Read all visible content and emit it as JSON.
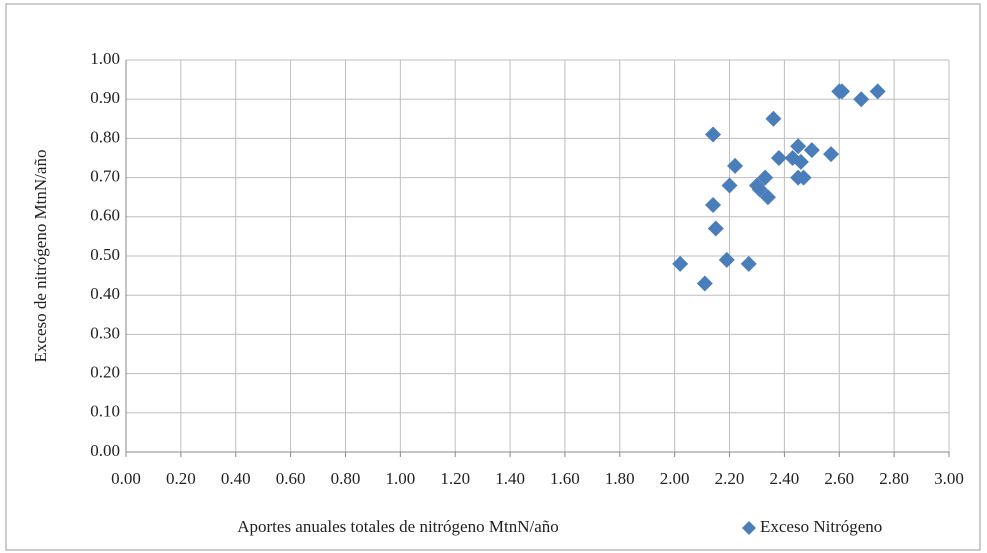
{
  "chart_data": {
    "type": "scatter",
    "x_label": "Aportes anuales totales de nitrógeno MtnN/año",
    "y_label": "Exceso de nitrógeno MtnN/año",
    "series": [
      {
        "name": "Exceso Nitrógeno",
        "color": "#4a7ebb",
        "x": [
          2.02,
          2.11,
          2.14,
          2.14,
          2.15,
          2.19,
          2.2,
          2.22,
          2.27,
          2.3,
          2.31,
          2.33,
          2.34,
          2.36,
          2.38,
          2.43,
          2.45,
          2.45,
          2.46,
          2.47,
          2.5,
          2.57,
          2.6,
          2.61,
          2.68,
          2.74
        ],
        "values": [
          0.48,
          0.43,
          0.81,
          0.63,
          0.57,
          0.49,
          0.68,
          0.73,
          0.48,
          0.68,
          0.67,
          0.7,
          0.65,
          0.85,
          0.75,
          0.75,
          0.7,
          0.78,
          0.74,
          0.7,
          0.77,
          0.76,
          0.92,
          0.92,
          0.9,
          0.92
        ]
      }
    ],
    "xlim": [
      0,
      3
    ],
    "xticks": [
      {
        "value": 0,
        "label": "0.00"
      },
      {
        "value": 0.2,
        "label": "0.20"
      },
      {
        "value": 0.4,
        "label": "0.40"
      },
      {
        "value": 0.6,
        "label": "0.60"
      },
      {
        "value": 0.8,
        "label": "0.80"
      },
      {
        "value": 1,
        "label": "1.00"
      },
      {
        "value": 1.2,
        "label": "1.20"
      },
      {
        "value": 1.4,
        "label": "1.40"
      },
      {
        "value": 1.6,
        "label": "1.60"
      },
      {
        "value": 1.8,
        "label": "1.80"
      },
      {
        "value": 2,
        "label": "2.00"
      },
      {
        "value": 2.2,
        "label": "2.20"
      },
      {
        "value": 2.4,
        "label": "2.40"
      },
      {
        "value": 2.6,
        "label": "2.60"
      },
      {
        "value": 2.8,
        "label": "2.80"
      },
      {
        "value": 3,
        "label": "3.00"
      }
    ],
    "ylim": [
      0,
      1
    ],
    "yticks": [
      {
        "value": 0,
        "label": "0.00"
      },
      {
        "value": 0.1,
        "label": "0.10"
      },
      {
        "value": 0.2,
        "label": "0.20"
      },
      {
        "value": 0.3,
        "label": "0.30"
      },
      {
        "value": 0.4,
        "label": "0.40"
      },
      {
        "value": 0.5,
        "label": "0.50"
      },
      {
        "value": 0.6,
        "label": "0.60"
      },
      {
        "value": 0.7,
        "label": "0.70"
      },
      {
        "value": 0.8,
        "label": "0.80"
      },
      {
        "value": 0.9,
        "label": "0.90"
      },
      {
        "value": 1,
        "label": "1.00"
      }
    ],
    "grid": true,
    "legend": "bottom-right"
  }
}
